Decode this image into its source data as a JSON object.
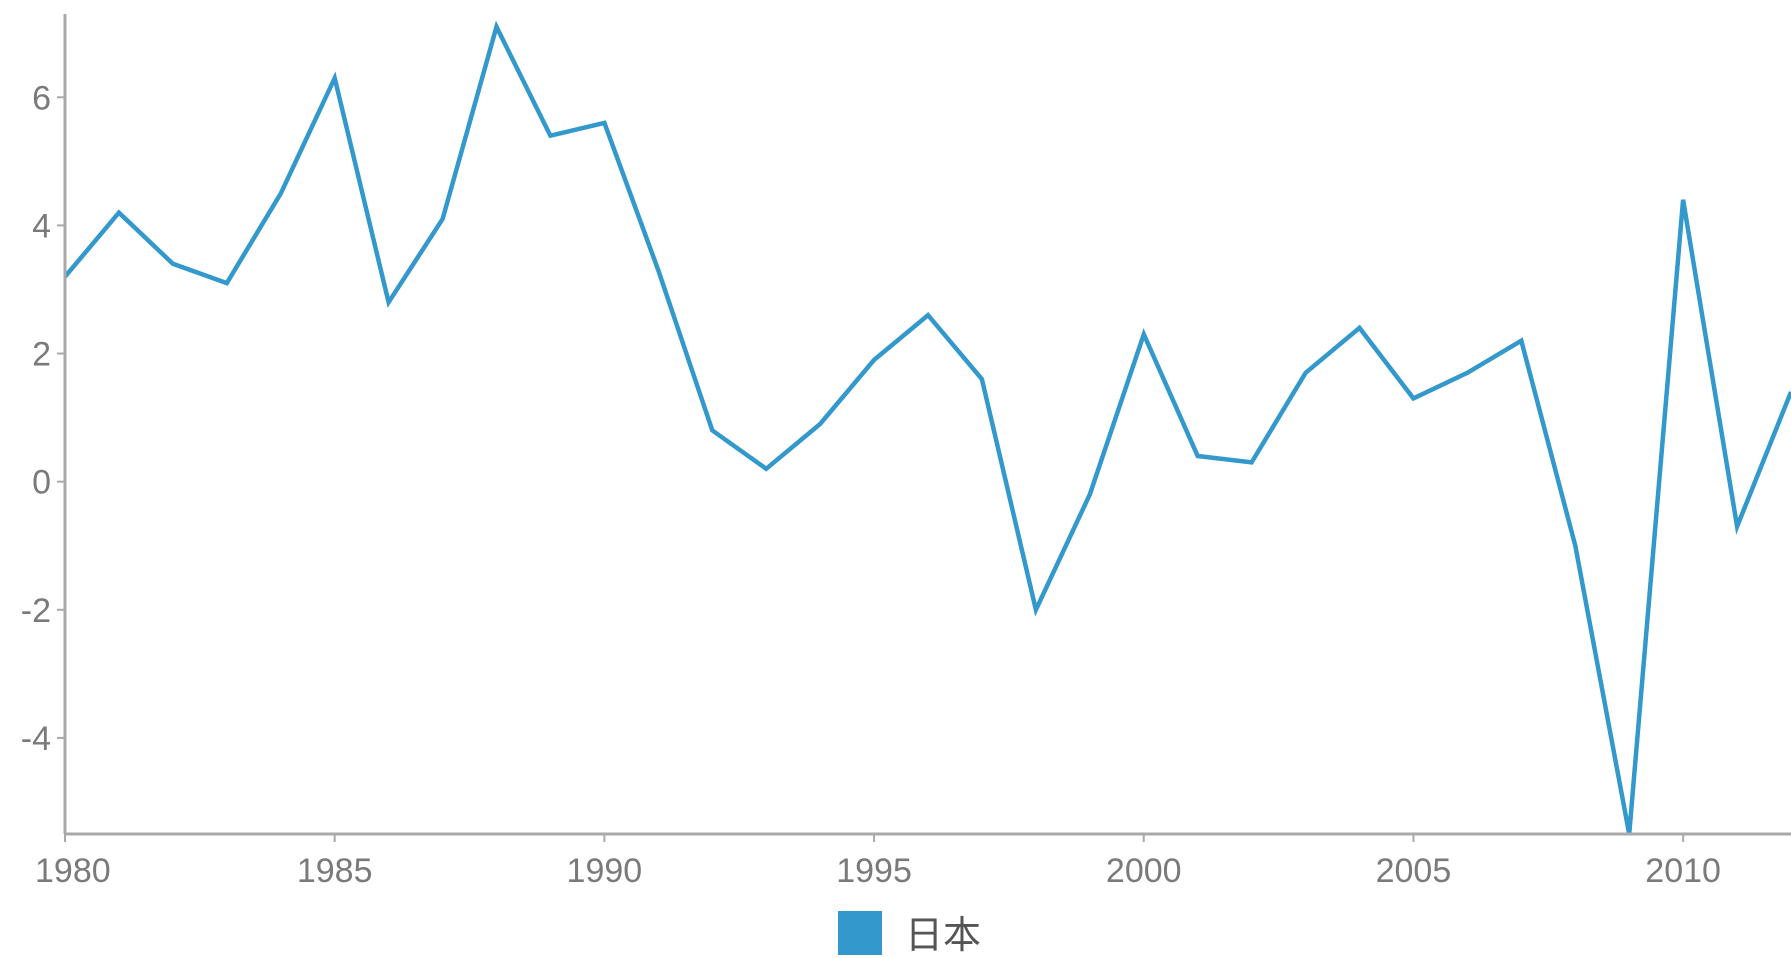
{
  "chart_data": {
    "type": "line",
    "title": "",
    "xlabel": "",
    "ylabel": "",
    "x": [
      1980,
      1981,
      1982,
      1983,
      1984,
      1985,
      1986,
      1987,
      1988,
      1989,
      1990,
      1991,
      1992,
      1993,
      1994,
      1995,
      1996,
      1997,
      1998,
      1999,
      2000,
      2001,
      2002,
      2003,
      2004,
      2005,
      2006,
      2007,
      2008,
      2009,
      2010,
      2011,
      2012
    ],
    "xlim": [
      1980,
      2012
    ],
    "ylim": [
      -5.5,
      7.3
    ],
    "x_ticks": [
      {
        "value": 1980,
        "label": "1980"
      },
      {
        "value": 1985,
        "label": "1985"
      },
      {
        "value": 1990,
        "label": "1990"
      },
      {
        "value": 1995,
        "label": "1995"
      },
      {
        "value": 2000,
        "label": "2000"
      },
      {
        "value": 2005,
        "label": "2005"
      },
      {
        "value": 2010,
        "label": "2010"
      }
    ],
    "y_ticks": [
      {
        "value": 6,
        "label": "6"
      },
      {
        "value": 4,
        "label": "4"
      },
      {
        "value": 2,
        "label": "2"
      },
      {
        "value": 0,
        "label": "0"
      },
      {
        "value": -2,
        "label": "-2"
      },
      {
        "value": -4,
        "label": "-4"
      }
    ],
    "grid": false,
    "legend_position": "bottom-center",
    "series": [
      {
        "name": "日本",
        "color": "#3399cc",
        "values": [
          3.2,
          4.2,
          3.4,
          3.1,
          4.5,
          6.3,
          2.8,
          4.1,
          7.1,
          5.4,
          5.6,
          3.3,
          0.8,
          0.2,
          0.9,
          1.9,
          2.6,
          1.6,
          -2.0,
          -0.2,
          2.3,
          0.4,
          0.3,
          1.7,
          2.4,
          1.3,
          1.7,
          2.2,
          -1.0,
          -5.5,
          4.4,
          -0.7,
          1.4
        ]
      }
    ]
  }
}
